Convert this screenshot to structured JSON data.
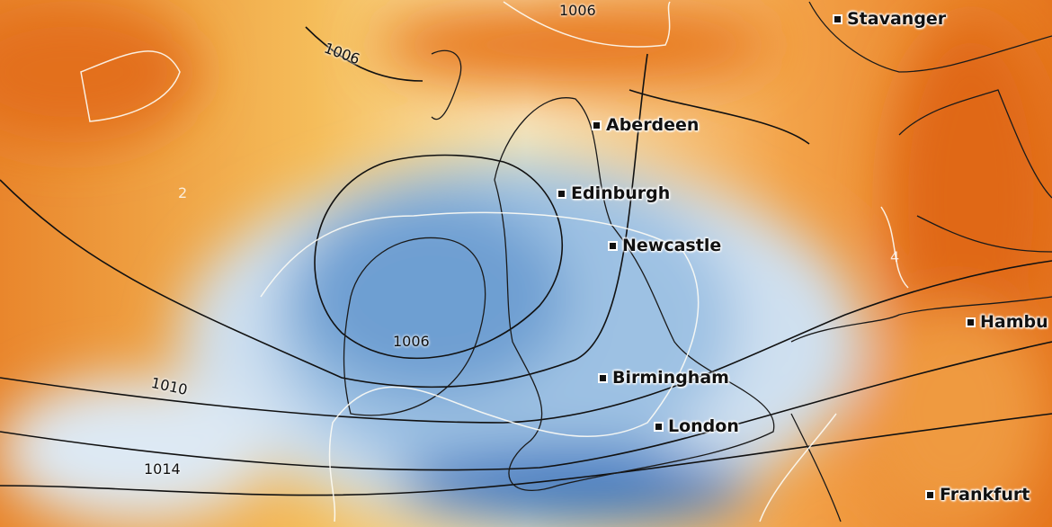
{
  "map": {
    "colors": {
      "warm": "#e8741a",
      "neutral": "#fdf8e6",
      "cool": "#3f7fc4"
    },
    "cities": [
      {
        "name": "Stavanger"
      },
      {
        "name": "Aberdeen"
      },
      {
        "name": "Edinburgh"
      },
      {
        "name": "Newcastle"
      },
      {
        "name": "Hambu"
      },
      {
        "name": "Birmingham"
      },
      {
        "name": "London"
      },
      {
        "name": "Frankfurt"
      }
    ],
    "isobar_labels": [
      "1006",
      "1006",
      "1010",
      "1014",
      "1006"
    ],
    "contour_labels": [
      "2",
      "4"
    ]
  }
}
